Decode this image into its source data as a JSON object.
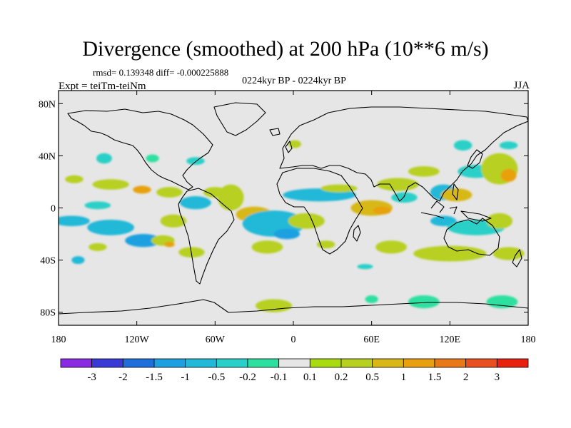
{
  "chart_data": {
    "type": "heatmap",
    "title": "Divergence (smoothed) at 200 hPa (10**6 m/s)",
    "stats": "rmsd= 0.139348 diff= -0.000225888",
    "period": "0224kyr BP - 0224kyr BP",
    "experiment": "Expt = teiTm-teiNm",
    "season": "JJA",
    "x_ticks": [
      {
        "value": -180,
        "label": "180"
      },
      {
        "value": -120,
        "label": "120W"
      },
      {
        "value": -60,
        "label": "60W"
      },
      {
        "value": 0,
        "label": "0"
      },
      {
        "value": 60,
        "label": "60E"
      },
      {
        "value": 120,
        "label": "120E"
      },
      {
        "value": 180,
        "label": "180"
      }
    ],
    "y_ticks": [
      {
        "value": 80,
        "label": "80N"
      },
      {
        "value": 40,
        "label": "40N"
      },
      {
        "value": 0,
        "label": "0"
      },
      {
        "value": -40,
        "label": "40S"
      },
      {
        "value": -80,
        "label": "80S"
      }
    ],
    "xlim": [
      -180,
      180
    ],
    "ylim": [
      -90,
      90
    ],
    "colorbar": {
      "colors": [
        "#8a2be2",
        "#3a3ad6",
        "#1e6fd9",
        "#1ea0e0",
        "#22b8d8",
        "#2ad0c8",
        "#2ee0a0",
        "#e6e6e6",
        "#a8dc10",
        "#b8d020",
        "#d8b818",
        "#e8a010",
        "#e87818",
        "#e85020",
        "#e82010"
      ],
      "labels": [
        "-3",
        "-2",
        "-1.5",
        "-1",
        "-0.5",
        "-0.2",
        "-0.1",
        "0.1",
        "0.2",
        "0.5",
        "1",
        "1.5",
        "2",
        "3"
      ]
    },
    "anomalies": [
      {
        "lon": -140,
        "lat": 18,
        "rx": 14,
        "ry": 4,
        "level": 9
      },
      {
        "lon": -116,
        "lat": 14,
        "rx": 7,
        "ry": 3,
        "level": 11
      },
      {
        "lon": -95,
        "lat": 12,
        "rx": 10,
        "ry": 4,
        "level": 9
      },
      {
        "lon": -75,
        "lat": 4,
        "rx": 12,
        "ry": 5,
        "level": 4
      },
      {
        "lon": -60,
        "lat": 12,
        "rx": 9,
        "ry": 4,
        "level": 9
      },
      {
        "lon": -168,
        "lat": 22,
        "rx": 7,
        "ry": 3,
        "level": 9
      },
      {
        "lon": -170,
        "lat": -10,
        "rx": 14,
        "ry": 4,
        "level": 4
      },
      {
        "lon": -140,
        "lat": -15,
        "rx": 18,
        "ry": 6,
        "level": 4
      },
      {
        "lon": -115,
        "lat": -25,
        "rx": 14,
        "ry": 5,
        "level": 3
      },
      {
        "lon": -150,
        "lat": 2,
        "rx": 10,
        "ry": 3,
        "level": 5
      },
      {
        "lon": -92,
        "lat": -10,
        "rx": 10,
        "ry": 5,
        "level": 9
      },
      {
        "lon": -100,
        "lat": -25,
        "rx": 9,
        "ry": 4,
        "level": 9
      },
      {
        "lon": -95,
        "lat": -28,
        "rx": 4,
        "ry": 2,
        "level": 11
      },
      {
        "lon": -78,
        "lat": -34,
        "rx": 10,
        "ry": 4,
        "level": 9
      },
      {
        "lon": -150,
        "lat": -30,
        "rx": 7,
        "ry": 3,
        "level": 9
      },
      {
        "lon": -165,
        "lat": -40,
        "rx": 5,
        "ry": 3,
        "level": 4
      },
      {
        "lon": -145,
        "lat": 38,
        "rx": 6,
        "ry": 4,
        "level": 5
      },
      {
        "lon": -75,
        "lat": 36,
        "rx": 7,
        "ry": 3,
        "level": 5
      },
      {
        "lon": -108,
        "lat": 38,
        "rx": 5,
        "ry": 3,
        "level": 6
      },
      {
        "lon": -48,
        "lat": 8,
        "rx": 10,
        "ry": 10,
        "level": 9
      },
      {
        "lon": -30,
        "lat": -5,
        "rx": 14,
        "ry": 6,
        "level": 10
      },
      {
        "lon": -15,
        "lat": -12,
        "rx": 24,
        "ry": 10,
        "level": 4
      },
      {
        "lon": -5,
        "lat": -20,
        "rx": 10,
        "ry": 4,
        "level": 3
      },
      {
        "lon": -20,
        "lat": -30,
        "rx": 12,
        "ry": 5,
        "level": 9
      },
      {
        "lon": 10,
        "lat": -10,
        "rx": 14,
        "ry": 6,
        "level": 9
      },
      {
        "lon": 20,
        "lat": 10,
        "rx": 28,
        "ry": 5,
        "level": 4
      },
      {
        "lon": 35,
        "lat": 15,
        "rx": 14,
        "ry": 3,
        "level": 9
      },
      {
        "lon": 60,
        "lat": 0,
        "rx": 16,
        "ry": 6,
        "level": 10
      },
      {
        "lon": 68,
        "lat": -2,
        "rx": 7,
        "ry": 3,
        "level": 11
      },
      {
        "lon": 80,
        "lat": 18,
        "rx": 16,
        "ry": 5,
        "level": 9
      },
      {
        "lon": 85,
        "lat": 8,
        "rx": 10,
        "ry": 4,
        "level": 5
      },
      {
        "lon": 100,
        "lat": 28,
        "rx": 12,
        "ry": 4,
        "level": 9
      },
      {
        "lon": 115,
        "lat": 12,
        "rx": 10,
        "ry": 6,
        "level": 4
      },
      {
        "lon": 125,
        "lat": 10,
        "rx": 12,
        "ry": 5,
        "level": 10
      },
      {
        "lon": 140,
        "lat": 28,
        "rx": 14,
        "ry": 5,
        "level": 5
      },
      {
        "lon": 158,
        "lat": 30,
        "rx": 14,
        "ry": 12,
        "level": 9
      },
      {
        "lon": 165,
        "lat": 25,
        "rx": 6,
        "ry": 5,
        "level": 11
      },
      {
        "lon": 130,
        "lat": 48,
        "rx": 7,
        "ry": 4,
        "level": 5
      },
      {
        "lon": 165,
        "lat": 48,
        "rx": 7,
        "ry": 3,
        "level": 5
      },
      {
        "lon": 115,
        "lat": -10,
        "rx": 10,
        "ry": 4,
        "level": 4
      },
      {
        "lon": 140,
        "lat": -15,
        "rx": 22,
        "ry": 6,
        "level": 5
      },
      {
        "lon": 158,
        "lat": -10,
        "rx": 10,
        "ry": 6,
        "level": 9
      },
      {
        "lon": 120,
        "lat": -35,
        "rx": 28,
        "ry": 6,
        "level": 9
      },
      {
        "lon": 165,
        "lat": -35,
        "rx": 12,
        "ry": 5,
        "level": 9
      },
      {
        "lon": 75,
        "lat": -30,
        "rx": 12,
        "ry": 5,
        "level": 9
      },
      {
        "lon": 25,
        "lat": -28,
        "rx": 7,
        "ry": 3,
        "level": 9
      },
      {
        "lon": 55,
        "lat": -45,
        "rx": 6,
        "ry": 2,
        "level": 5
      },
      {
        "lon": -15,
        "lat": -75,
        "rx": 14,
        "ry": 5,
        "level": 9
      },
      {
        "lon": 100,
        "lat": -72,
        "rx": 12,
        "ry": 5,
        "level": 6
      },
      {
        "lon": 160,
        "lat": -72,
        "rx": 12,
        "ry": 5,
        "level": 6
      },
      {
        "lon": 60,
        "lat": -70,
        "rx": 5,
        "ry": 3,
        "level": 6
      },
      {
        "lon": 1,
        "lat": 49,
        "rx": 5,
        "ry": 3,
        "level": 9
      }
    ]
  }
}
